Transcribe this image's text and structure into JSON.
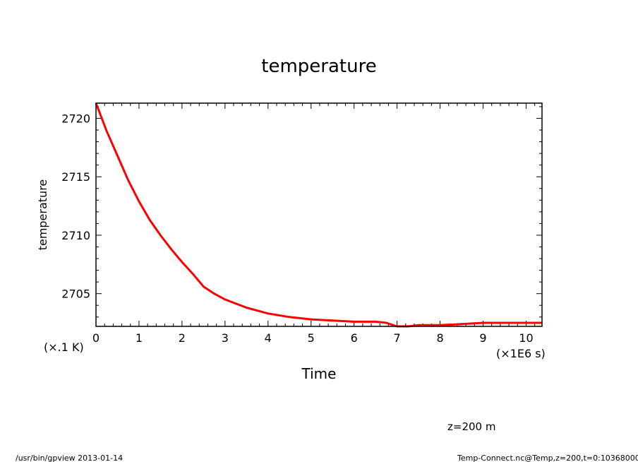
{
  "chart_data": {
    "type": "line",
    "title": "temperature",
    "xlabel": "Time",
    "ylabel": "temperature",
    "x_unit": "(×1E6 s)",
    "y_unit": "(×.1 K)",
    "xlim": [
      0,
      10.37
    ],
    "ylim": [
      2702.2,
      2721.3
    ],
    "xticks": [
      0,
      1,
      2,
      3,
      4,
      5,
      6,
      7,
      8,
      9,
      10
    ],
    "yticks": [
      2705,
      2710,
      2715,
      2720
    ],
    "color": "#ff0000",
    "grid": false,
    "series": [
      {
        "x": [
          0,
          0.25,
          0.5,
          0.75,
          1.0,
          1.25,
          1.5,
          1.75,
          2.0,
          2.25,
          2.5,
          2.75,
          3.0,
          3.5,
          4.0,
          4.5,
          5.0,
          5.5,
          6.0,
          6.5,
          6.75,
          7.0,
          7.25,
          7.5,
          8.0,
          8.5,
          9.0,
          9.5,
          10.0,
          10.37
        ],
        "y": [
          2721.3,
          2718.9,
          2716.8,
          2714.7,
          2712.9,
          2711.3,
          2710.0,
          2708.8,
          2707.7,
          2706.7,
          2705.6,
          2705.0,
          2704.5,
          2703.8,
          2703.3,
          2703.0,
          2702.8,
          2702.7,
          2702.6,
          2702.6,
          2702.5,
          2702.2,
          2702.2,
          2702.3,
          2702.3,
          2702.4,
          2702.5,
          2702.5,
          2702.5,
          2702.5
        ]
      }
    ],
    "annotation": "z=200 m"
  },
  "footer": {
    "left": "/usr/bin/gpview   2013-01-14",
    "right": "Temp-Connect.nc@Temp,z=200,t=0:10368000"
  }
}
